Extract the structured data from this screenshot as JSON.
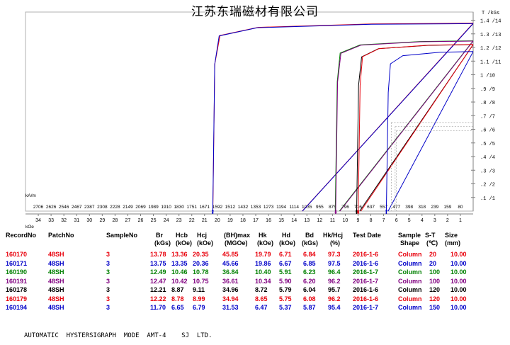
{
  "header": {
    "title": "江苏东瑞磁材有限公司",
    "footer": "AUTOMATIC  HYSTERSIGRAPH  MODE  AMT-4    SJ  LTD."
  },
  "table": {
    "headers": {
      "record": "RecordNo",
      "patch": "PatchNo",
      "sample": "SampleNo",
      "br": "Br",
      "br_unit": "(kGs)",
      "hcb": "Hcb",
      "hcb_unit": "(kOe)",
      "hcj": "Hcj",
      "hcj_unit": "(kOe)",
      "bh": "(BH)max",
      "bh_unit": "(MGOe)",
      "hk": "Hk",
      "hk_unit": "(kOe)",
      "hd": "Hd",
      "hd_unit": "(kOe)",
      "bd": "Bd",
      "bd_unit": "(kGs)",
      "hkhcj": "Hk/Hcj",
      "hkhcj_unit": "(%)",
      "date": "Test Date",
      "shape": "Sample",
      "shape2": "Shape",
      "st": "S-T",
      "st_unit": "(℃)",
      "size": "Size",
      "size_unit": "(mm)"
    },
    "rows": [
      {
        "record": "160170",
        "patch": "48SH",
        "sample": "3",
        "br": "13.78",
        "hcb": "13.36",
        "hcj": "20.35",
        "bh": "45.85",
        "hk": "19.79",
        "hd": "6.71",
        "bd": "6.84",
        "hkhcj": "97.3",
        "date": "2016-1-6",
        "shape": "Column",
        "st": "20",
        "size": "10.00",
        "color": "#e8000b"
      },
      {
        "record": "160171",
        "patch": "48SH",
        "sample": "3",
        "br": "13.75",
        "hcb": "13.35",
        "hcj": "20.36",
        "bh": "45.66",
        "hk": "19.86",
        "hd": "6.67",
        "bd": "6.85",
        "hkhcj": "97.5",
        "date": "2016-1-6",
        "shape": "Column",
        "st": "20",
        "size": "10.00",
        "color": "#0000c8"
      },
      {
        "record": "160190",
        "patch": "48SH",
        "sample": "3",
        "br": "12.49",
        "hcb": "10.46",
        "hcj": "10.78",
        "bh": "36.84",
        "hk": "10.40",
        "hd": "5.91",
        "bd": "6.23",
        "hkhcj": "96.4",
        "date": "2016-1-7",
        "shape": "Column",
        "st": "100",
        "size": "10.00",
        "color": "#008000"
      },
      {
        "record": "160191",
        "patch": "48SH",
        "sample": "3",
        "br": "12.47",
        "hcb": "10.42",
        "hcj": "10.75",
        "bh": "36.61",
        "hk": "10.34",
        "hd": "5.90",
        "bd": "6.20",
        "hkhcj": "96.2",
        "date": "2016-1-7",
        "shape": "Column",
        "st": "100",
        "size": "10.00",
        "color": "#800080"
      },
      {
        "record": "160178",
        "patch": "48SH",
        "sample": "3",
        "br": "12.21",
        "hcb": "8.87",
        "hcj": "9.11",
        "bh": "34.96",
        "hk": "8.72",
        "hd": "5.79",
        "bd": "6.04",
        "hkhcj": "95.7",
        "date": "2016-1-6",
        "shape": "Column",
        "st": "120",
        "size": "10.00",
        "color": "#000000"
      },
      {
        "record": "160179",
        "patch": "48SH",
        "sample": "3",
        "br": "12.22",
        "hcb": "8.78",
        "hcj": "8.99",
        "bh": "34.94",
        "hk": "8.65",
        "hd": "5.75",
        "bd": "6.08",
        "hkhcj": "96.2",
        "date": "2016-1-6",
        "shape": "Column",
        "st": "120",
        "size": "10.00",
        "color": "#e8000b"
      },
      {
        "record": "160194",
        "patch": "48SH",
        "sample": "3",
        "br": "11.70",
        "hcb": "6.65",
        "hcj": "6.79",
        "bh": "31.53",
        "hk": "6.47",
        "hd": "5.37",
        "bd": "5.87",
        "hkhcj": "95.4",
        "date": "2016-1-7",
        "shape": "Column",
        "st": "150",
        "size": "10.00",
        "color": "#0000c8"
      }
    ]
  },
  "chart_data": {
    "type": "line",
    "title": "江苏东瑞磁材有限公司",
    "xlabel_top": "kA/m",
    "xlabel_bottom": "kOe",
    "ylabel": "T /kGs",
    "xlim_koe": [
      35,
      0
    ],
    "ylim_kgs": [
      0,
      14.6
    ],
    "grid": false,
    "x_ticks_kam": [
      "2706",
      "2626",
      "2546",
      "2467",
      "2387",
      "2308",
      "2228",
      "2149",
      "2069",
      "1989",
      "1910",
      "1830",
      "1751",
      "1671",
      "1592",
      "1512",
      "1432",
      "1353",
      "1273",
      "1194",
      "1114",
      "1035",
      "955",
      "875",
      "796",
      "716",
      "637",
      "557",
      "477",
      "398",
      "318",
      "239",
      "159",
      "80"
    ],
    "x_ticks_koe": [
      "34",
      "33",
      "32",
      "31",
      "30",
      "29",
      "28",
      "27",
      "26",
      "25",
      "24",
      "23",
      "22",
      "21",
      "20",
      "19",
      "18",
      "17",
      "16",
      "15",
      "14",
      "13",
      "12",
      "11",
      "10",
      "9",
      "8",
      "7",
      "6",
      "5",
      "4",
      "3",
      "2",
      "1"
    ],
    "y_ticks": [
      ".1 /1",
      ".2 /2",
      ".3 /3",
      ".4 /4",
      ".5 /5",
      ".6 /6",
      ".7 /7",
      ".8 /8",
      ".9 /9",
      "1 /10",
      "1.1 /11",
      "1.2 /12",
      "1.3 /13",
      "1.4 /14"
    ],
    "series": [
      {
        "br": 13.78,
        "hcb": 13.36,
        "hcj": 20.35,
        "hk": 19.79,
        "color": "#e8000b"
      },
      {
        "br": 13.75,
        "hcb": 13.35,
        "hcj": 20.36,
        "hk": 19.86,
        "color": "#0000c8"
      },
      {
        "br": 12.49,
        "hcb": 10.46,
        "hcj": 10.78,
        "hk": 10.4,
        "color": "#008000"
      },
      {
        "br": 12.47,
        "hcb": 10.42,
        "hcj": 10.75,
        "hk": 10.34,
        "color": "#800080"
      },
      {
        "br": 12.21,
        "hcb": 8.87,
        "hcj": 9.11,
        "hk": 8.72,
        "color": "#000000"
      },
      {
        "br": 12.22,
        "hcb": 8.78,
        "hcj": 8.99,
        "hk": 8.65,
        "color": "#e8000b"
      },
      {
        "br": 11.7,
        "hcb": 6.65,
        "hcj": 6.79,
        "hk": 6.47,
        "color": "#0000c8"
      }
    ],
    "markers": [
      {
        "label": "2",
        "koe": 20.36,
        "color": "#0000c8"
      },
      {
        "label": "4",
        "koe": 10.75,
        "color": "#800080"
      },
      {
        "label": "5",
        "koe": 9.11,
        "color": "#000000"
      },
      {
        "label": "6",
        "koe": 8.99,
        "color": "#e8000b"
      },
      {
        "label": "7",
        "koe": 6.79,
        "color": "#0000c8"
      }
    ]
  }
}
